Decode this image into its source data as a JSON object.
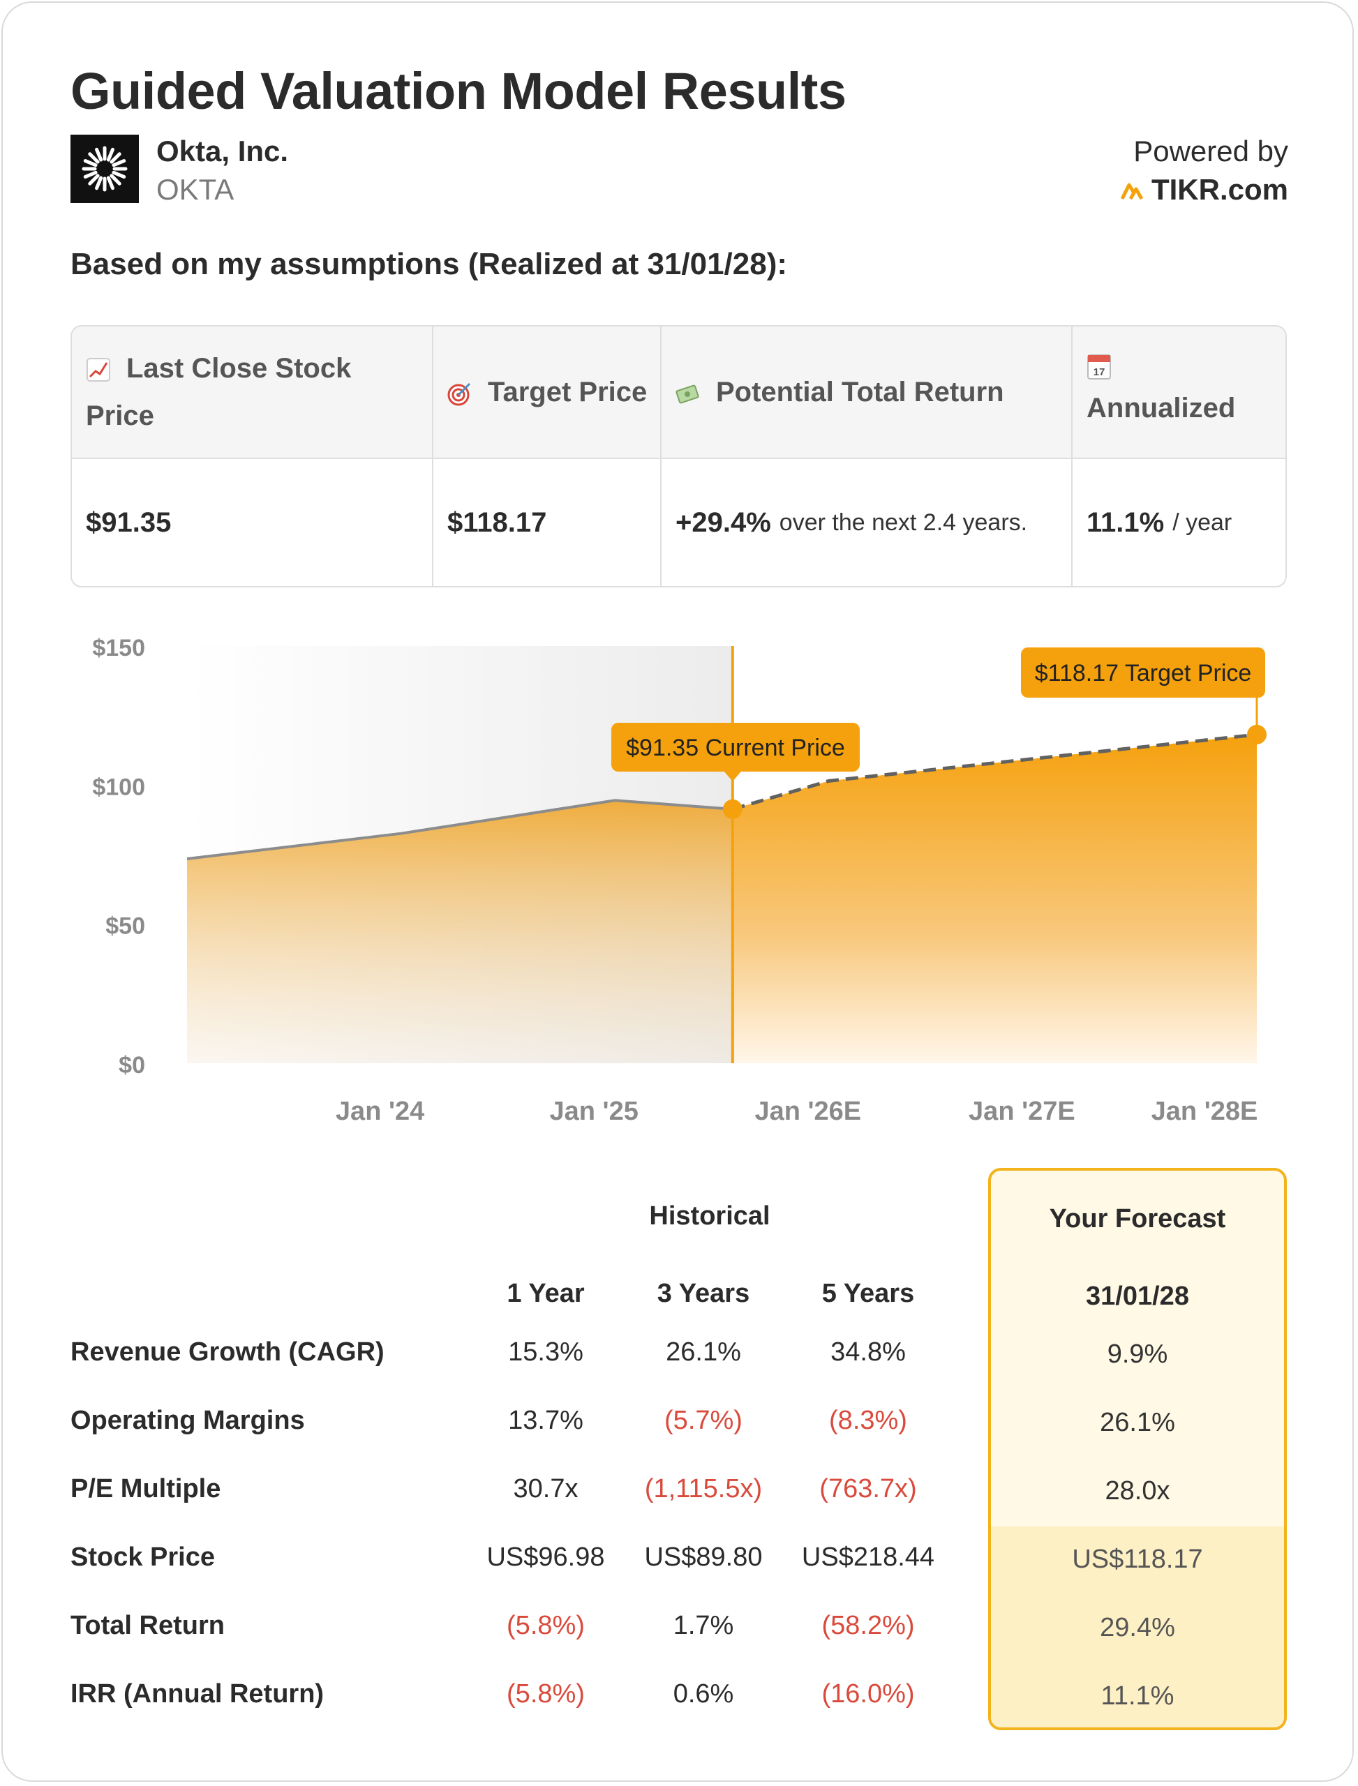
{
  "header": {
    "title": "Guided Valuation Model Results",
    "company_name": "Okta, Inc.",
    "ticker": "OKTA",
    "powered_by": "Powered by",
    "brand": "TIKR.com",
    "assumptions_line": "Based on my assumptions (Realized at 31/01/28):"
  },
  "metrics": [
    {
      "icon": "chart-up-icon",
      "label": "Last Close Stock Price",
      "value": "$91.35",
      "suffix": ""
    },
    {
      "icon": "target-icon",
      "label": "Target Price",
      "value": "$118.17",
      "suffix": ""
    },
    {
      "icon": "money-icon",
      "label": "Potential Total Return",
      "value": "+29.4%",
      "suffix": "over the next 2.4 years."
    },
    {
      "icon": "calendar-icon",
      "label": "Annualized",
      "value": "11.1%",
      "suffix": "/ year",
      "calendar_day": "17"
    }
  ],
  "chart_data": {
    "type": "area",
    "y_ticks": [
      "$150",
      "$100",
      "$50",
      "$0"
    ],
    "ylim": [
      0,
      150
    ],
    "x_ticks": [
      "Jan '24",
      "Jan '25",
      "Jan '26E",
      "Jan '27E",
      "Jan '28E"
    ],
    "historical": [
      {
        "x": 2023.25,
        "y": 73.5
      },
      {
        "x": 2024.25,
        "y": 82.6
      },
      {
        "x": 2025.25,
        "y": 94.5
      },
      {
        "x": 2025.8,
        "y": 91.35
      }
    ],
    "forecast": [
      {
        "x": 2025.8,
        "y": 91.35
      },
      {
        "x": 2026.25,
        "y": 101.5
      },
      {
        "x": 2028.25,
        "y": 118.17
      }
    ],
    "xlim": [
      2023.25,
      2028.25
    ],
    "current_price_label": "$91.35 Current Price",
    "target_price_label": "$118.17 Target Price",
    "colors": {
      "accent": "#f5a10d",
      "line": "#8c8c8c",
      "dash": "#616161"
    }
  },
  "table": {
    "historical_header": "Historical",
    "forecast_header": "Your Forecast",
    "periods": [
      "1 Year",
      "3 Years",
      "5 Years"
    ],
    "forecast_date": "31/01/28",
    "rows": [
      {
        "label": "Revenue Growth (CAGR)",
        "values": [
          "15.3%",
          "26.1%",
          "34.8%"
        ],
        "neg": [
          false,
          false,
          false
        ],
        "forecast": "9.9%"
      },
      {
        "label": "Operating Margins",
        "values": [
          "13.7%",
          "(5.7%)",
          "(8.3%)"
        ],
        "neg": [
          false,
          true,
          true
        ],
        "forecast": "26.1%"
      },
      {
        "label": "P/E Multiple",
        "values": [
          "30.7x",
          "(1,115.5x)",
          "(763.7x)"
        ],
        "neg": [
          false,
          true,
          true
        ],
        "forecast": "28.0x"
      },
      {
        "label": "Stock Price",
        "values": [
          "US$96.98",
          "US$89.80",
          "US$218.44"
        ],
        "neg": [
          false,
          false,
          false
        ],
        "forecast": "US$118.17"
      },
      {
        "label": "Total Return",
        "values": [
          "(5.8%)",
          "1.7%",
          "(58.2%)"
        ],
        "neg": [
          true,
          false,
          true
        ],
        "forecast": "29.4%"
      },
      {
        "label": "IRR (Annual Return)",
        "values": [
          "(5.8%)",
          "0.6%",
          "(16.0%)"
        ],
        "neg": [
          true,
          false,
          true
        ],
        "forecast": "11.1%"
      }
    ]
  }
}
